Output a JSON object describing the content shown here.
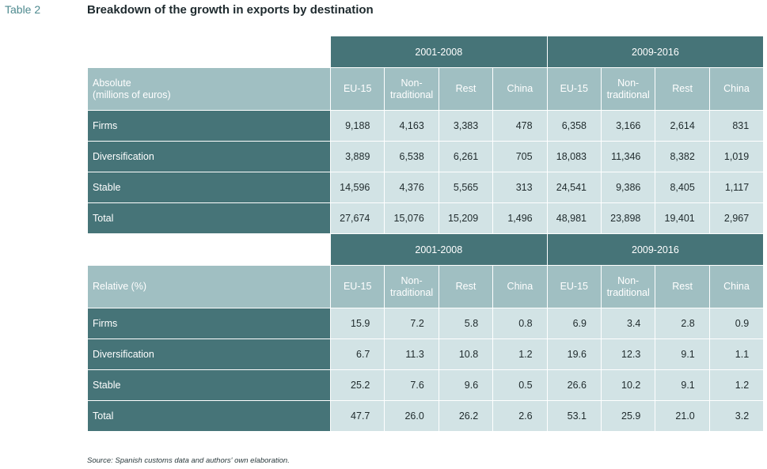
{
  "header": {
    "table_label": "Table 2",
    "title": "Breakdown of the growth in exports by destination"
  },
  "sections": [
    {
      "periods": [
        "2001-2008",
        "2009-2016"
      ],
      "row_header": [
        "Absolute",
        "(millions of euros)"
      ],
      "columns": [
        [
          "EU-15"
        ],
        [
          "Non-",
          "traditional"
        ],
        [
          "Rest"
        ],
        [
          "China"
        ],
        [
          "EU-15"
        ],
        [
          "Non-",
          "traditional"
        ],
        [
          "Rest"
        ],
        [
          "China"
        ]
      ],
      "rows": [
        {
          "label": "Firms",
          "values": [
            "9,188",
            "4,163",
            "3,383",
            "478",
            "6,358",
            "3,166",
            "2,614",
            "831"
          ]
        },
        {
          "label": "Diversification",
          "values": [
            "3,889",
            "6,538",
            "6,261",
            "705",
            "18,083",
            "11,346",
            "8,382",
            "1,019"
          ]
        },
        {
          "label": "Stable",
          "values": [
            "14,596",
            "4,376",
            "5,565",
            "313",
            "24,541",
            "9,386",
            "8,405",
            "1,117"
          ]
        },
        {
          "label": "Total",
          "values": [
            "27,674",
            "15,076",
            "15,209",
            "1,496",
            "48,981",
            "23,898",
            "19,401",
            "2,967"
          ]
        }
      ]
    },
    {
      "periods": [
        "2001-2008",
        "2009-2016"
      ],
      "row_header": [
        "Relative (%)"
      ],
      "columns": [
        [
          "EU-15"
        ],
        [
          "Non-",
          "traditional"
        ],
        [
          "Rest"
        ],
        [
          "China"
        ],
        [
          "EU-15"
        ],
        [
          "Non-",
          "traditional"
        ],
        [
          "Rest"
        ],
        [
          "China"
        ]
      ],
      "rows": [
        {
          "label": "Firms",
          "values": [
            "15.9",
            "7.2",
            "5.8",
            "0.8",
            "6.9",
            "3.4",
            "2.8",
            "0.9"
          ]
        },
        {
          "label": "Diversification",
          "values": [
            "6.7",
            "11.3",
            "10.8",
            "1.2",
            "19.6",
            "12.3",
            "9.1",
            "1.1"
          ]
        },
        {
          "label": "Stable",
          "values": [
            "25.2",
            "7.6",
            "9.6",
            "0.5",
            "26.6",
            "10.2",
            "9.1",
            "1.2"
          ]
        },
        {
          "label": "Total",
          "values": [
            "47.7",
            "26.0",
            "26.2",
            "2.6",
            "53.1",
            "25.9",
            "21.0",
            "3.2"
          ]
        }
      ]
    }
  ],
  "footer": {
    "source": "Source: Spanish customs data and authors' own elaboration."
  },
  "colors": {
    "dark_teal": "#467478",
    "header_teal": "#a0bfc2",
    "cell_fill": "#d2e3e5",
    "label_accent": "#4e8a8f"
  }
}
